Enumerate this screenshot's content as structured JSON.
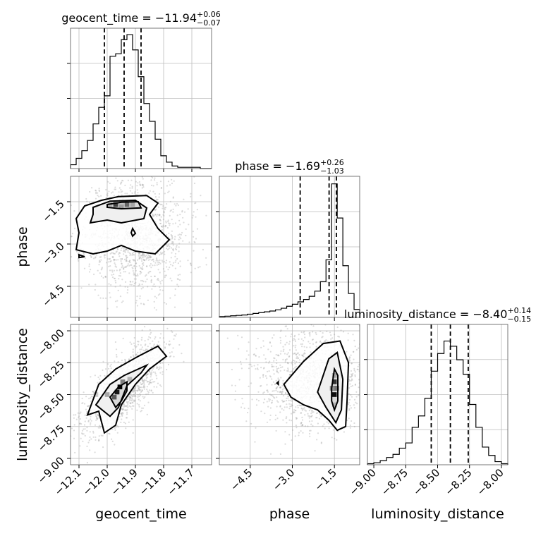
{
  "chart_data": {
    "type": "corner",
    "parameters": [
      {
        "name": "geocent_time",
        "axis_label": "geocent_time",
        "title_prefix": "geocent_time = ",
        "median": "−11.94",
        "err_plus": "+0.06",
        "err_minus": "−0.07",
        "range": [
          -12.13,
          -11.63
        ],
        "ticks": [
          -12.1,
          -12.0,
          -11.9,
          -11.8,
          -11.7
        ],
        "tick_labels": [
          "−12.1",
          "−12.0",
          "−11.9",
          "−11.8",
          "−11.7"
        ],
        "quantiles": [
          -12.01,
          -11.94,
          -11.88
        ],
        "hist_edges": [
          -12.13,
          -12.11,
          -12.09,
          -12.07,
          -12.05,
          -12.03,
          -12.01,
          -11.99,
          -11.97,
          -11.95,
          -11.93,
          -11.91,
          -11.89,
          -11.87,
          -11.85,
          -11.83,
          -11.81,
          -11.79,
          -11.77,
          -11.75,
          -11.73,
          -11.71,
          -11.69,
          -11.67,
          -11.65,
          -11.63
        ],
        "hist_counts": [
          3,
          8,
          14,
          22,
          35,
          48,
          57,
          88,
          90,
          101,
          105,
          93,
          72,
          51,
          37,
          23,
          10,
          5,
          2,
          1,
          1,
          1,
          1,
          0,
          0
        ],
        "hist_max": 110
      },
      {
        "name": "phase",
        "axis_label": "phase",
        "title_prefix": "phase = ",
        "median": "−1.69",
        "err_plus": "+0.26",
        "err_minus": "−1.03",
        "range": [
          -5.6,
          -0.6
        ],
        "ticks": [
          -4.5,
          -3.0,
          -1.5
        ],
        "tick_labels": [
          "−4.5",
          "−3.0",
          "−1.5"
        ],
        "quantiles": [
          -2.72,
          -1.69,
          -1.43
        ],
        "hist_edges": [
          -5.6,
          -5.4,
          -5.2,
          -5.0,
          -4.8,
          -4.6,
          -4.4,
          -4.2,
          -4.0,
          -3.8,
          -3.6,
          -3.4,
          -3.2,
          -3.0,
          -2.8,
          -2.6,
          -2.4,
          -2.2,
          -2.0,
          -1.8,
          -1.6,
          -1.4,
          -1.2,
          -1.0,
          -0.8,
          -0.6
        ],
        "hist_counts": [
          2,
          3,
          4,
          5,
          6,
          8,
          10,
          12,
          14,
          16,
          19,
          23,
          28,
          33,
          39,
          45,
          53,
          66,
          90,
          145,
          336,
          250,
          130,
          60,
          20
        ],
        "hist_max": 355
      },
      {
        "name": "luminosity_distance",
        "axis_label": "luminosity_distance",
        "title_prefix": "luminosity_distance = ",
        "median": "−8.40",
        "err_plus": "+0.14",
        "err_minus": "−0.15",
        "range": [
          -9.05,
          -7.95
        ],
        "ticks": [
          -9.0,
          -8.75,
          -8.5,
          -8.25,
          -8.0
        ],
        "tick_labels": [
          "−9.00",
          "−8.75",
          "−8.50",
          "−8.25",
          "−8.00"
        ],
        "quantiles": [
          -8.55,
          -8.4,
          -8.26
        ],
        "hist_edges": [
          -9.05,
          -9.0,
          -8.95,
          -8.9,
          -8.85,
          -8.8,
          -8.75,
          -8.7,
          -8.65,
          -8.6,
          -8.55,
          -8.5,
          -8.45,
          -8.4,
          -8.35,
          -8.3,
          -8.25,
          -8.2,
          -8.15,
          -8.1,
          -8.05,
          -8.0,
          -7.95
        ],
        "hist_counts": [
          1,
          2,
          4,
          7,
          10,
          16,
          21,
          36,
          47,
          64,
          90,
          107,
          119,
          114,
          101,
          87,
          58,
          36,
          17,
          9,
          3,
          1
        ],
        "hist_max": 135
      }
    ],
    "pairs": [
      {
        "x": "geocent_time",
        "y": "phase",
        "y_ticks": [
          -4.5,
          -3.0,
          -1.5
        ],
        "y_tick_labels": [
          "−4.5",
          "−3.0",
          "−1.5"
        ],
        "outer_contour": [
          [
            -12.08,
            -1.65
          ],
          [
            -12.02,
            -1.45
          ],
          [
            -11.96,
            -1.32
          ],
          [
            -11.86,
            -1.28
          ],
          [
            -11.82,
            -1.55
          ],
          [
            -11.85,
            -1.95
          ],
          [
            -11.82,
            -2.45
          ],
          [
            -11.78,
            -2.85
          ],
          [
            -11.83,
            -3.35
          ],
          [
            -11.9,
            -3.25
          ],
          [
            -11.95,
            -3.05
          ],
          [
            -12.0,
            -3.25
          ],
          [
            -12.05,
            -3.35
          ],
          [
            -12.11,
            -3.2
          ],
          [
            -12.1,
            -2.6
          ],
          [
            -12.11,
            -2.1
          ]
        ],
        "mid_contour": [
          [
            -12.05,
            -1.7
          ],
          [
            -11.99,
            -1.48
          ],
          [
            -11.9,
            -1.45
          ],
          [
            -11.86,
            -1.72
          ],
          [
            -11.87,
            -2.1
          ],
          [
            -11.95,
            -2.25
          ],
          [
            -12.0,
            -2.15
          ],
          [
            -12.06,
            -2.25
          ],
          [
            -12.05,
            -1.95
          ]
        ],
        "inner_contour": [
          [
            -12.0,
            -1.6
          ],
          [
            -11.95,
            -1.52
          ],
          [
            -11.89,
            -1.5
          ],
          [
            -11.88,
            -1.72
          ],
          [
            -11.95,
            -1.75
          ],
          [
            -12.0,
            -1.7
          ]
        ],
        "small_contours": [
          [
            [
              -11.91,
              -2.45
            ],
            [
              -11.9,
              -2.62
            ],
            [
              -11.91,
              -2.72
            ],
            [
              -11.915,
              -2.6
            ]
          ],
          [
            [
              -12.1,
              -3.38
            ],
            [
              -12.08,
              -3.45
            ],
            [
              -12.1,
              -3.48
            ]
          ]
        ],
        "density_cells": [
          [
            -11.95,
            -1.6,
            1.0
          ],
          [
            -11.97,
            -1.6,
            0.75
          ],
          [
            -11.93,
            -1.6,
            0.6
          ],
          [
            -11.95,
            -1.68,
            0.4
          ],
          [
            -11.99,
            -1.6,
            0.3
          ],
          [
            -11.91,
            -1.6,
            0.35
          ],
          [
            -11.95,
            -1.52,
            0.25
          ]
        ],
        "points": {
          "cx": -11.9,
          "cy": -2.7,
          "sx": 0.09,
          "sy": 1.05,
          "n": 1400,
          "seed": 11
        }
      },
      {
        "x": "geocent_time",
        "y": "luminosity_distance",
        "y_ticks": [
          -9.0,
          -8.75,
          -8.5,
          -8.25,
          -8.0
        ],
        "y_tick_labels": [
          "−9.00",
          "−8.75",
          "−8.50",
          "−8.25",
          "−8.00"
        ],
        "outer_contour": [
          [
            -12.07,
            -8.66
          ],
          [
            -12.03,
            -8.42
          ],
          [
            -11.97,
            -8.3
          ],
          [
            -11.89,
            -8.2
          ],
          [
            -11.82,
            -8.12
          ],
          [
            -11.79,
            -8.2
          ],
          [
            -11.85,
            -8.3
          ],
          [
            -11.9,
            -8.42
          ],
          [
            -11.95,
            -8.58
          ],
          [
            -11.97,
            -8.74
          ],
          [
            -12.01,
            -8.8
          ],
          [
            -12.03,
            -8.63
          ]
        ],
        "mid_contour": [
          [
            -12.04,
            -8.58
          ],
          [
            -11.99,
            -8.42
          ],
          [
            -11.94,
            -8.35
          ],
          [
            -11.86,
            -8.27
          ],
          [
            -11.88,
            -8.33
          ],
          [
            -11.93,
            -8.43
          ],
          [
            -11.96,
            -8.6
          ],
          [
            -11.99,
            -8.67
          ]
        ],
        "inner_contour": [
          [
            -11.99,
            -8.52
          ],
          [
            -11.96,
            -8.44
          ],
          [
            -11.93,
            -8.4
          ],
          [
            -11.93,
            -8.47
          ],
          [
            -11.95,
            -8.55
          ],
          [
            -11.97,
            -8.6
          ]
        ],
        "small_contours": [],
        "density_cells": [
          [
            -11.965,
            -8.48,
            0.9
          ],
          [
            -11.955,
            -8.44,
            1.0
          ],
          [
            -11.975,
            -8.52,
            0.65
          ],
          [
            -11.945,
            -8.4,
            0.5
          ],
          [
            -12.0,
            -8.5,
            0.35
          ],
          [
            -12.04,
            -8.5,
            0.2
          ],
          [
            -11.92,
            -8.38,
            0.3
          ]
        ],
        "points": {
          "cx": -11.94,
          "cy": -8.45,
          "sx": 0.07,
          "sy": 0.18,
          "n": 1300,
          "seed": 23,
          "corr": 0.7
        }
      },
      {
        "x": "phase",
        "y": "luminosity_distance",
        "y_ticks": [
          -9.0,
          -8.75,
          -8.5,
          -8.25,
          -8.0
        ],
        "y_tick_labels": [
          "−9.00",
          "−8.75",
          "−8.50",
          "−8.25",
          "−8.00"
        ],
        "outer_contour": [
          [
            -3.3,
            -8.42
          ],
          [
            -2.6,
            -8.24
          ],
          [
            -1.9,
            -8.1
          ],
          [
            -1.3,
            -8.08
          ],
          [
            -1.0,
            -8.25
          ],
          [
            -1.05,
            -8.55
          ],
          [
            -1.1,
            -8.75
          ],
          [
            -1.4,
            -8.78
          ],
          [
            -1.7,
            -8.7
          ],
          [
            -2.1,
            -8.62
          ],
          [
            -2.6,
            -8.58
          ],
          [
            -3.05,
            -8.52
          ]
        ],
        "mid_contour": [
          [
            -2.1,
            -8.48
          ],
          [
            -1.7,
            -8.22
          ],
          [
            -1.4,
            -8.17
          ],
          [
            -1.2,
            -8.38
          ],
          [
            -1.25,
            -8.62
          ],
          [
            -1.45,
            -8.72
          ],
          [
            -1.8,
            -8.6
          ]
        ],
        "inner_contour": [
          [
            -1.6,
            -8.45
          ],
          [
            -1.5,
            -8.3
          ],
          [
            -1.38,
            -8.35
          ],
          [
            -1.38,
            -8.55
          ],
          [
            -1.5,
            -8.62
          ],
          [
            -1.6,
            -8.55
          ]
        ],
        "small_contours": [
          [
            [
              -3.55,
              -8.41
            ],
            [
              -3.5,
              -8.4
            ],
            [
              -3.5,
              -8.42
            ]
          ]
        ],
        "density_cells": [
          [
            -1.5,
            -8.45,
            1.0
          ],
          [
            -1.5,
            -8.5,
            0.95
          ],
          [
            -1.5,
            -8.4,
            0.8
          ],
          [
            -1.42,
            -8.45,
            0.55
          ],
          [
            -1.58,
            -8.45,
            0.45
          ],
          [
            -1.5,
            -8.35,
            0.35
          ],
          [
            -1.5,
            -8.58,
            0.3
          ]
        ],
        "points": {
          "cx": -2.2,
          "cy": -8.38,
          "sx": 1.1,
          "sy": 0.2,
          "n": 1300,
          "seed": 37
        }
      }
    ]
  }
}
